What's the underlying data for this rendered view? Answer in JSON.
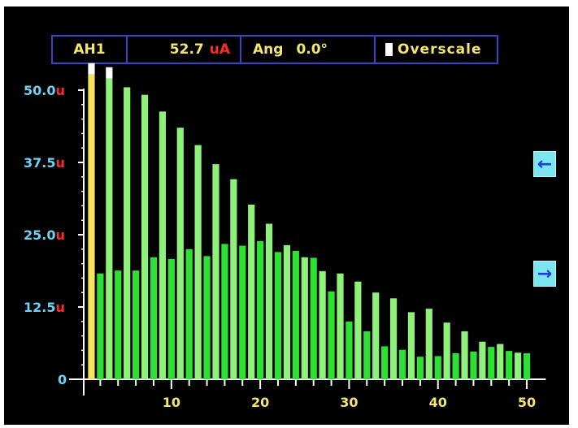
{
  "header": {
    "harmonic_label": "AH1",
    "value": "52.7",
    "value_unit": "uA",
    "angle_label": "Ang",
    "angle_value": "0.0°",
    "overscale_label": "Overscale"
  },
  "nav": {
    "left_icon": "arrow-left-icon",
    "right_icon": "arrow-right-icon"
  },
  "colors": {
    "background": "#000000",
    "bar": "#2ee034",
    "bar_light": "#8ff07c",
    "fundamental": "#f6e45a",
    "overscale": "#ffffff",
    "y_label_number": "#6cd3f2",
    "y_label_unit": "#ff2a2a",
    "x_label": "#f4e76a",
    "header_border": "#3b43c8"
  },
  "chart_data": {
    "type": "bar",
    "y_ticks": [
      {
        "num": "50.0",
        "unit": "u",
        "value": 50
      },
      {
        "num": "37.5",
        "unit": "u",
        "value": 37.5
      },
      {
        "num": "25.0",
        "unit": "u",
        "value": 25
      },
      {
        "num": "12.5",
        "unit": "u",
        "value": 12.5
      },
      {
        "num": "0",
        "unit": "",
        "value": 0
      }
    ],
    "x_ticks": [
      {
        "label": "10",
        "value": 10
      },
      {
        "label": "20",
        "value": 20
      },
      {
        "label": "30",
        "value": 30
      },
      {
        "label": "40",
        "value": 40
      },
      {
        "label": "50",
        "value": 50
      }
    ],
    "ylim": [
      0,
      50
    ],
    "xlim": [
      0,
      51
    ],
    "harmonics": [
      1,
      2,
      3,
      4,
      5,
      6,
      7,
      8,
      9,
      10,
      11,
      12,
      13,
      14,
      15,
      16,
      17,
      18,
      19,
      20,
      21,
      22,
      23,
      24,
      25,
      26,
      27,
      28,
      29,
      30,
      31,
      32,
      33,
      34,
      35,
      36,
      37,
      38,
      39,
      40,
      41,
      42,
      43,
      44,
      45,
      46,
      47,
      48,
      49,
      50
    ],
    "values": [
      52.7,
      18.3,
      52.0,
      18.8,
      50.5,
      18.8,
      49.2,
      21.1,
      46.3,
      20.8,
      43.5,
      22.5,
      40.5,
      21.3,
      37.2,
      23.4,
      34.6,
      23.1,
      30.2,
      23.9,
      26.9,
      22.0,
      23.2,
      22.2,
      21.1,
      21.0,
      18.7,
      15.2,
      18.3,
      10.0,
      16.9,
      8.3,
      15.0,
      5.7,
      14.0,
      5.1,
      11.6,
      3.9,
      12.2,
      4.0,
      9.8,
      4.5,
      8.3,
      4.8,
      6.5,
      5.6,
      6.1,
      4.9,
      4.6,
      4.5
    ],
    "overscale": [
      1,
      3
    ]
  }
}
